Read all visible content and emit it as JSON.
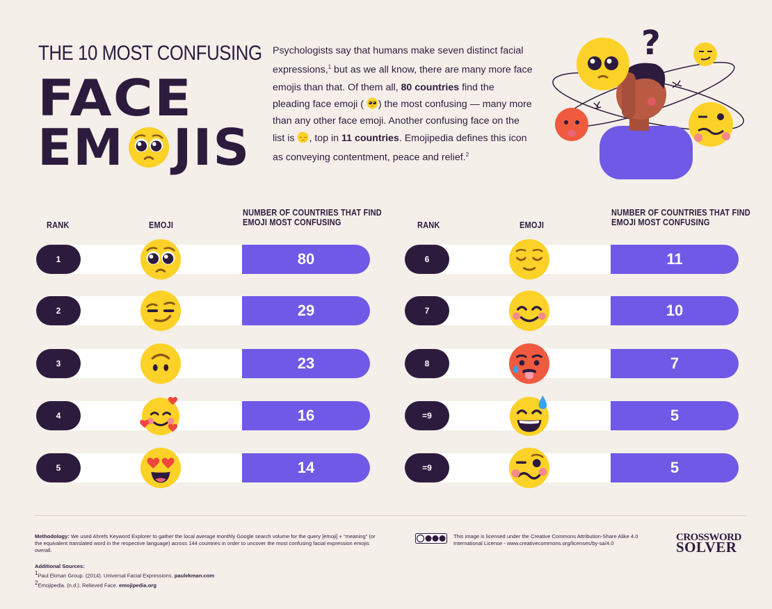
{
  "header": {
    "title_line1": "THE 10 MOST CONFUSING",
    "title_word1": "FACE",
    "title_word2_start": "EM",
    "title_word2_end": "JIS"
  },
  "intro": {
    "p1": "Psychologists say that humans make seven distinct facial expressions,",
    "sup1": "1",
    "p2": " but as we all know, there are many more face emojis than that. Of them all, ",
    "b1": "80 countries",
    "p3": " find the pleading face emoji (",
    "p4": ") the most confusing — many more than any other face emoji. Another confusing face on the list is ",
    "p5": ", top in ",
    "b2": "11 countries",
    "p6": ". Emojipedia defines this icon as conveying contentment, peace and relief.",
    "sup2": "2"
  },
  "table_headers": {
    "rank": "RANK",
    "emoji": "EMOJI",
    "count_line1": "NUMBER OF COUNTRIES THAT FIND",
    "count_line2": "EMOJI MOST CONFUSING"
  },
  "chart_data": {
    "type": "table",
    "columns": [
      "RANK",
      "EMOJI",
      "NUMBER OF COUNTRIES THAT FIND EMOJI MOST CONFUSING"
    ],
    "rows": [
      {
        "rank": "1",
        "emoji": "pleading-face",
        "value": 80
      },
      {
        "rank": "2",
        "emoji": "smirking-face",
        "value": 29
      },
      {
        "rank": "3",
        "emoji": "upside-down-face",
        "value": 23
      },
      {
        "rank": "4",
        "emoji": "smiling-face-with-hearts",
        "value": 16
      },
      {
        "rank": "5",
        "emoji": "smiling-face-with-heart-eyes",
        "value": 14
      },
      {
        "rank": "6",
        "emoji": "relieved-face",
        "value": 11
      },
      {
        "rank": "7",
        "emoji": "smiling-face-with-smiling-eyes",
        "value": 10
      },
      {
        "rank": "8",
        "emoji": "hot-face",
        "value": 7
      },
      {
        "rank": "=9",
        "emoji": "grinning-face-with-sweat",
        "value": 5
      },
      {
        "rank": "=9",
        "emoji": "woozy-face",
        "value": 5
      }
    ]
  },
  "footer": {
    "method_label": "Methodology:",
    "method_text": " We used Ahrefs Keyword Explorer to gather the local average monthly Google search volume for the query [emoji] + “meaning” (or the equivalent translated word in the respective language) across 144 countries in order to uncover the most confusing facial expression emojis overall.",
    "sources_label": "Additional Sources:",
    "source1_sup": "1",
    "source1": "Paul Ekman Group. (2014). Universal Facial Expressions. ",
    "source1_link": "paulekman.com",
    "source2_sup": "2",
    "source2": "Emojipedia. (n.d.). Relieved Face. ",
    "source2_link": "emojipedia.org",
    "license": "This image is licensed under the Creative Commons Attribution-Share Alike 4.0 International License - www.creativecommons.org/licenses/by-sa/4.0",
    "brand_line1": "CROSSWORD",
    "brand_line2": "SOLVER"
  },
  "colors": {
    "background": "#f4efe9",
    "dark": "#2d1b3d",
    "accent": "#7059e6",
    "emoji_yellow": "#fcd228",
    "emoji_red": "#f05a3e"
  }
}
